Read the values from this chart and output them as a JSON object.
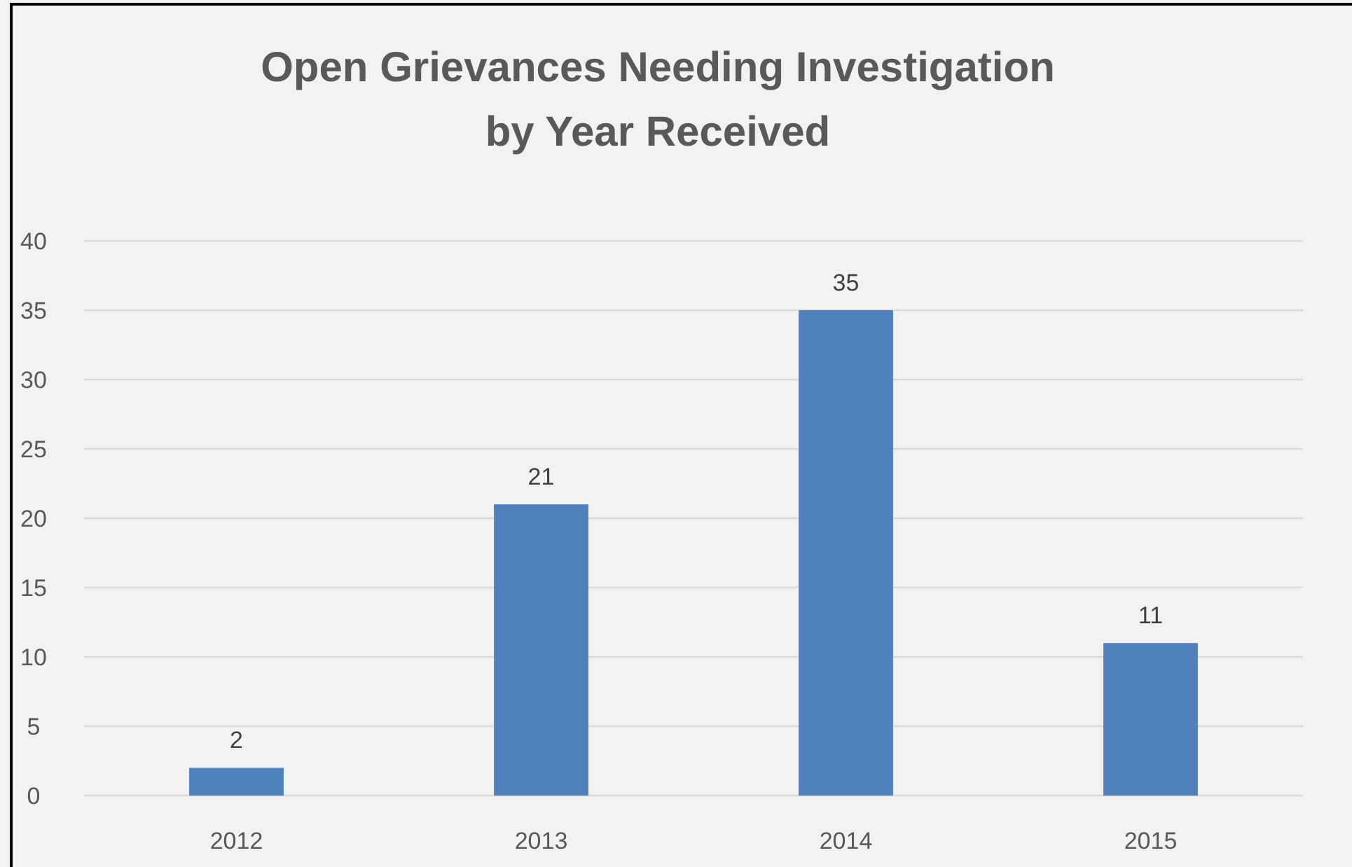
{
  "chart_data": {
    "type": "bar",
    "title": "Open Grievances Needing Investigation\nby Year Received",
    "categories": [
      "2012",
      "2013",
      "2014",
      "2015"
    ],
    "values": [
      2,
      21,
      35,
      11
    ],
    "color": "#4f81bd",
    "ylim": [
      0,
      40
    ],
    "yticks": [
      0,
      5,
      10,
      15,
      20,
      25,
      30,
      35,
      40
    ],
    "grid": "y",
    "data_labels": true
  }
}
